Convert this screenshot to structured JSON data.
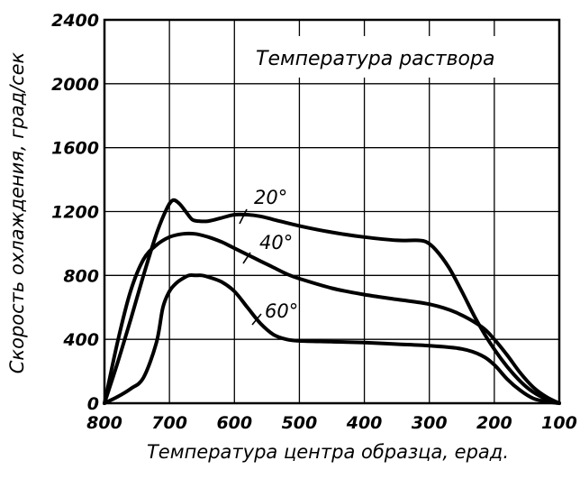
{
  "chart_data": {
    "type": "line",
    "title": "",
    "annotation": "Температура раствора",
    "xlabel": "Температура центра образца, ерад.",
    "ylabel": "Скорость охлаждения, град/сек",
    "xlim": [
      800,
      100
    ],
    "ylim": [
      0,
      2400
    ],
    "x_ticks": [
      "800",
      "700",
      "600",
      "500",
      "400",
      "300",
      "200",
      "100"
    ],
    "y_ticks": [
      "0",
      "400",
      "800",
      "1200",
      "1600",
      "2000",
      "2400"
    ],
    "grid": true,
    "series": [
      {
        "name": "20°",
        "x": [
          800,
          780,
          760,
          740,
          720,
          705,
          695,
          685,
          675,
          665,
          655,
          640,
          620,
          600,
          580,
          560,
          540,
          500,
          450,
          400,
          350,
          320,
          305,
          290,
          270,
          250,
          230,
          210,
          190,
          170,
          150,
          130,
          110,
          100
        ],
        "y": [
          0,
          250,
          520,
          800,
          1060,
          1210,
          1270,
          1250,
          1200,
          1150,
          1140,
          1140,
          1160,
          1180,
          1180,
          1170,
          1150,
          1110,
          1070,
          1040,
          1020,
          1020,
          1010,
          960,
          850,
          700,
          540,
          400,
          280,
          180,
          100,
          45,
          10,
          0
        ]
      },
      {
        "name": "40°",
        "x": [
          800,
          780,
          760,
          740,
          720,
          700,
          680,
          660,
          640,
          620,
          600,
          580,
          560,
          540,
          520,
          500,
          450,
          400,
          350,
          300,
          260,
          220,
          200,
          180,
          160,
          140,
          120,
          100
        ],
        "y": [
          0,
          380,
          700,
          900,
          990,
          1040,
          1060,
          1060,
          1040,
          1010,
          970,
          930,
          890,
          850,
          810,
          780,
          720,
          680,
          650,
          620,
          570,
          480,
          400,
          300,
          190,
          100,
          40,
          0
        ]
      },
      {
        "name": "60°",
        "x": [
          800,
          780,
          760,
          740,
          720,
          710,
          700,
          690,
          680,
          670,
          660,
          650,
          640,
          620,
          600,
          580,
          560,
          540,
          520,
          500,
          450,
          400,
          350,
          300,
          250,
          220,
          200,
          180,
          160,
          140,
          120,
          100
        ],
        "y": [
          0,
          40,
          90,
          160,
          380,
          600,
          700,
          750,
          780,
          800,
          800,
          800,
          790,
          760,
          700,
          600,
          500,
          430,
          400,
          390,
          385,
          380,
          370,
          360,
          340,
          300,
          240,
          150,
          80,
          30,
          10,
          0
        ]
      }
    ]
  }
}
